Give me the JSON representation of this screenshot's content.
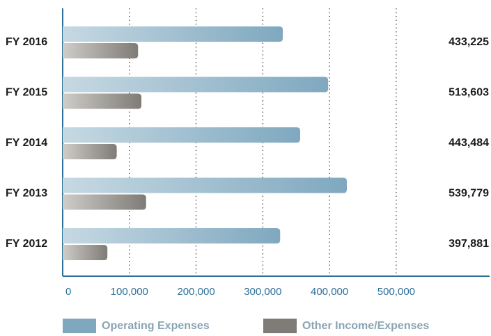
{
  "chart_data": {
    "type": "bar",
    "orientation": "horizontal",
    "categories": [
      "FY 2016",
      "FY 2015",
      "FY 2014",
      "FY 2013",
      "FY 2012"
    ],
    "series": [
      {
        "name": "Operating Expenses",
        "color": "#7fa8bf",
        "values": [
          330000,
          398000,
          356000,
          426000,
          326000
        ]
      },
      {
        "name": "Other Income/Expenses",
        "color": "#7f7b76",
        "values": [
          113000,
          118000,
          81000,
          125000,
          67000
        ]
      }
    ],
    "totals": [
      433225,
      513603,
      443484,
      539779,
      397881
    ],
    "total_labels": [
      "433,225",
      "513,603",
      "443,484",
      "539,779",
      "397,881"
    ],
    "xlim": [
      0,
      640000
    ],
    "xticks": [
      0,
      {
        "value": 100000,
        "label": "100,000"
      },
      {
        "value": 200000,
        "label": "200,000"
      },
      {
        "value": 300000,
        "label": "300,000"
      },
      {
        "value": 400000,
        "label": "400,000"
      },
      {
        "value": 500000,
        "label": "500,000"
      }
    ],
    "grid": true,
    "legend": "bottom"
  }
}
